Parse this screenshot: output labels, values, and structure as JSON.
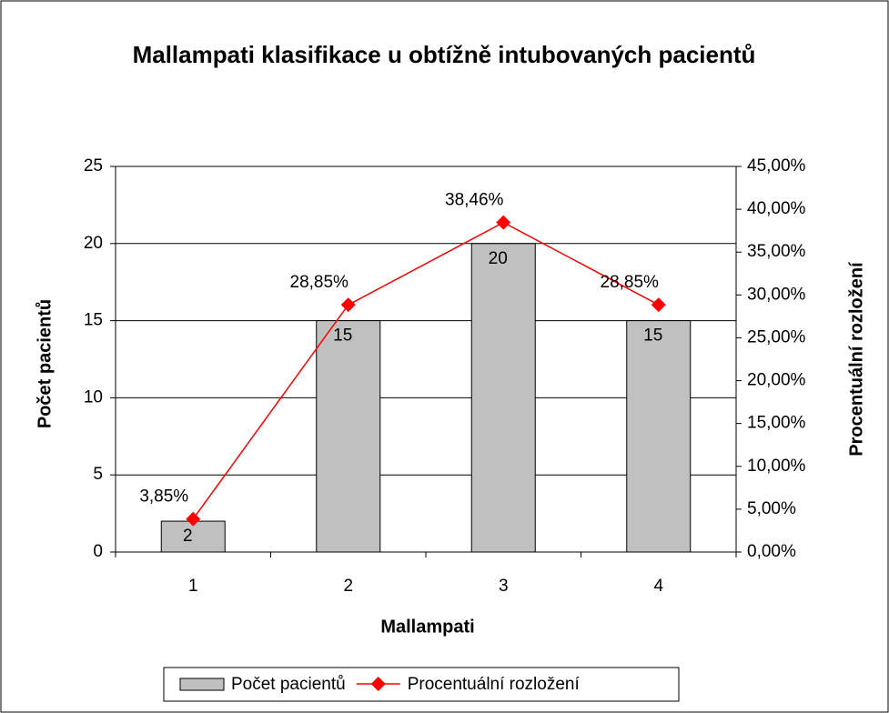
{
  "chart_data": {
    "type": "bar_line",
    "title": "Mallampati klasifikace u obtížně intubovaných pacientů",
    "x_label": "Mallampati",
    "y_label": "Počet pacientů",
    "y2_label": "Procentuální rozložení",
    "categories": [
      "1",
      "2",
      "3",
      "4"
    ],
    "series": [
      {
        "name": "Počet pacientů",
        "type": "bar",
        "color": "#c0c0c0",
        "values": [
          2,
          15,
          20,
          15
        ]
      },
      {
        "name": "Procentuální rozložení",
        "type": "line",
        "axis": "y2",
        "color": "#ff0000",
        "values": [
          3.85,
          28.85,
          38.46,
          28.85
        ],
        "value_labels": [
          "3,85%",
          "28,85%",
          "38,46%",
          "28,85%"
        ]
      }
    ],
    "ylim": [
      0,
      25
    ],
    "yticks": [
      0,
      5,
      10,
      15,
      20,
      25
    ],
    "y2lim": [
      0,
      45
    ],
    "y2ticks": [
      {
        "value": 0,
        "label": "0,00%"
      },
      {
        "value": 5,
        "label": "5,00%"
      },
      {
        "value": 10,
        "label": "10,00%"
      },
      {
        "value": 15,
        "label": "15,00%"
      },
      {
        "value": 20,
        "label": "20,00%"
      },
      {
        "value": 25,
        "label": "25,00%"
      },
      {
        "value": 30,
        "label": "30,00%"
      },
      {
        "value": 35,
        "label": "35,00%"
      },
      {
        "value": 40,
        "label": "40,00%"
      },
      {
        "value": 45,
        "label": "45,00%"
      }
    ],
    "grid": true,
    "legend": "bottom"
  }
}
